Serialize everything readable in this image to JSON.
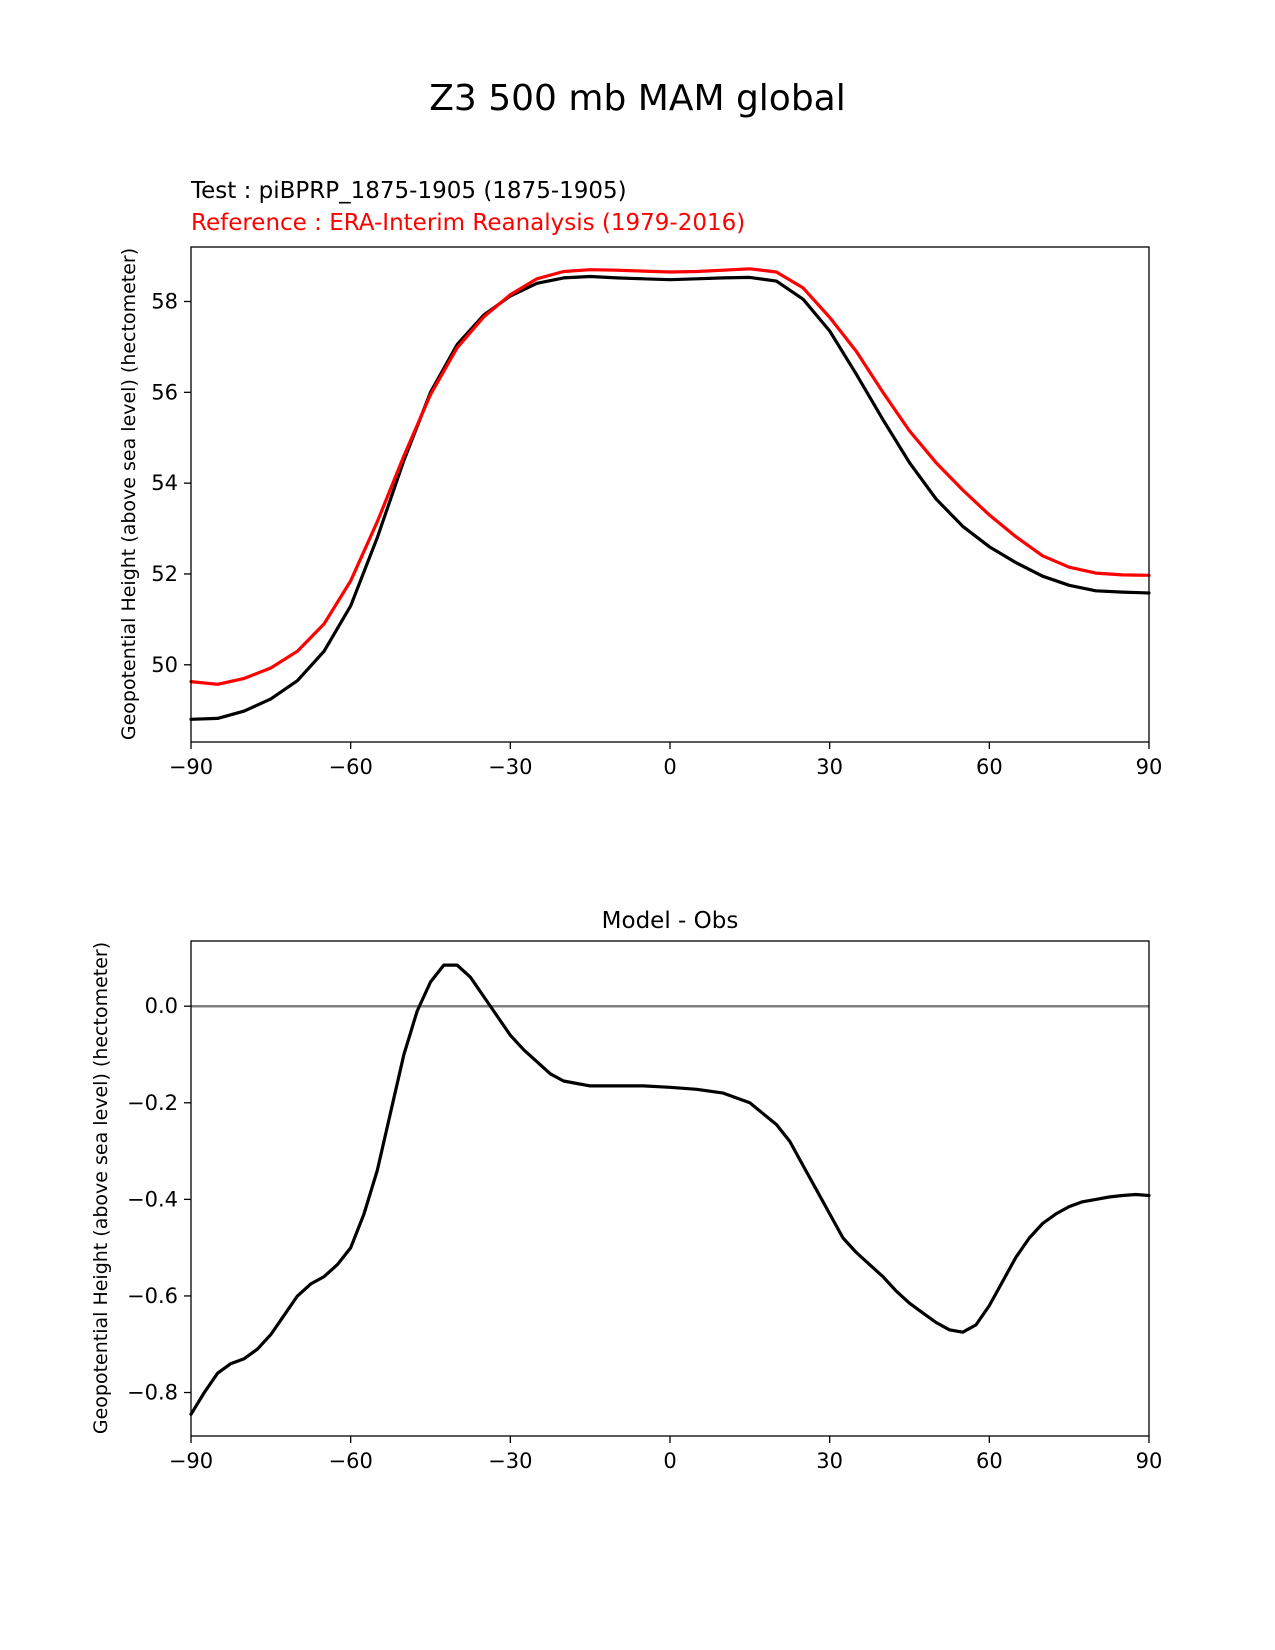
{
  "figure": {
    "suptitle": "Z3 500 mb MAM global"
  },
  "chart_data": [
    {
      "type": "line",
      "title_test": "Test : piBPRP_1875-1905 (1875-1905)",
      "title_reference": "Reference : ERA-Interim Reanalysis (1979-2016)",
      "xlabel": "",
      "ylabel": "Geopotential Height (above sea level) (hectometer)",
      "xlim": [
        -90,
        90
      ],
      "ylim": [
        48.3,
        59.2
      ],
      "xticks": [
        -90,
        -60,
        -30,
        0,
        30,
        60,
        90
      ],
      "xtick_labels": [
        "−90",
        "−60",
        "−30",
        "0",
        "30",
        "60",
        "90"
      ],
      "yticks": [
        50,
        52,
        54,
        56,
        58
      ],
      "ytick_labels": [
        "50",
        "52",
        "54",
        "56",
        "58"
      ],
      "x": [
        -90,
        -85,
        -80,
        -75,
        -70,
        -65,
        -60,
        -55,
        -50,
        -45,
        -40,
        -35,
        -30,
        -25,
        -20,
        -15,
        -10,
        -5,
        0,
        5,
        10,
        15,
        20,
        25,
        30,
        35,
        40,
        45,
        50,
        55,
        60,
        65,
        70,
        75,
        80,
        85,
        90
      ],
      "series": [
        {
          "name": "Test",
          "color": "#000000",
          "values": [
            48.8,
            48.82,
            48.98,
            49.25,
            49.65,
            50.3,
            51.3,
            52.8,
            54.5,
            56.0,
            57.05,
            57.7,
            58.12,
            58.4,
            58.52,
            58.55,
            58.52,
            58.5,
            58.48,
            58.5,
            58.52,
            58.53,
            58.45,
            58.05,
            57.35,
            56.4,
            55.4,
            54.45,
            53.65,
            53.05,
            52.6,
            52.25,
            51.95,
            51.75,
            51.63,
            51.6,
            51.58
          ]
        },
        {
          "name": "Reference",
          "color": "#ff0000",
          "values": [
            49.63,
            49.57,
            49.7,
            49.93,
            50.3,
            50.9,
            51.85,
            53.15,
            54.6,
            55.95,
            56.98,
            57.66,
            58.15,
            58.5,
            58.66,
            58.7,
            58.69,
            58.67,
            58.65,
            58.66,
            58.69,
            58.72,
            58.65,
            58.3,
            57.65,
            56.9,
            56.0,
            55.15,
            54.45,
            53.85,
            53.3,
            52.82,
            52.4,
            52.15,
            52.02,
            51.98,
            51.97
          ]
        }
      ]
    },
    {
      "type": "line",
      "title": "Model - Obs",
      "xlabel": "",
      "ylabel": "Geopotential Height (above sea level) (hectometer)",
      "xlim": [
        -90,
        90
      ],
      "ylim": [
        -0.89,
        0.135
      ],
      "xticks": [
        -90,
        -60,
        -30,
        0,
        30,
        60,
        90
      ],
      "xtick_labels": [
        "−90",
        "−60",
        "−30",
        "0",
        "30",
        "60",
        "90"
      ],
      "yticks": [
        -0.8,
        -0.6,
        -0.4,
        -0.2,
        0.0
      ],
      "ytick_labels": [
        "−0.8",
        "−0.6",
        "−0.4",
        "−0.2",
        "0.0"
      ],
      "reference_line": 0.0,
      "x": [
        -90,
        -87.5,
        -85,
        -82.5,
        -80,
        -77.5,
        -75,
        -72.5,
        -70,
        -67.5,
        -65,
        -62.5,
        -60,
        -57.5,
        -55,
        -52.5,
        -50,
        -47.5,
        -45,
        -42.5,
        -40,
        -37.5,
        -35,
        -32.5,
        -30,
        -27.5,
        -25,
        -22.5,
        -20,
        -17.5,
        -15,
        -12.5,
        -10,
        -5,
        0,
        5,
        10,
        15,
        20,
        22.5,
        25,
        27.5,
        30,
        32.5,
        35,
        37.5,
        40,
        42.5,
        45,
        47.5,
        50,
        52.5,
        55,
        57.5,
        60,
        62.5,
        65,
        67.5,
        70,
        72.5,
        75,
        77.5,
        80,
        82.5,
        85,
        87.5,
        90
      ],
      "series": [
        {
          "name": "Model - Obs",
          "color": "#000000",
          "values": [
            -0.845,
            -0.8,
            -0.76,
            -0.74,
            -0.73,
            -0.71,
            -0.68,
            -0.64,
            -0.6,
            -0.575,
            -0.56,
            -0.535,
            -0.5,
            -0.43,
            -0.34,
            -0.22,
            -0.1,
            -0.01,
            0.05,
            0.085,
            0.085,
            0.06,
            0.02,
            -0.02,
            -0.06,
            -0.09,
            -0.115,
            -0.14,
            -0.155,
            -0.16,
            -0.165,
            -0.165,
            -0.165,
            -0.165,
            -0.168,
            -0.172,
            -0.18,
            -0.2,
            -0.245,
            -0.28,
            -0.33,
            -0.38,
            -0.43,
            -0.48,
            -0.51,
            -0.535,
            -0.56,
            -0.59,
            -0.615,
            -0.635,
            -0.655,
            -0.67,
            -0.675,
            -0.66,
            -0.62,
            -0.57,
            -0.52,
            -0.48,
            -0.45,
            -0.43,
            -0.415,
            -0.405,
            -0.4,
            -0.395,
            -0.392,
            -0.39,
            -0.392
          ]
        }
      ]
    }
  ]
}
